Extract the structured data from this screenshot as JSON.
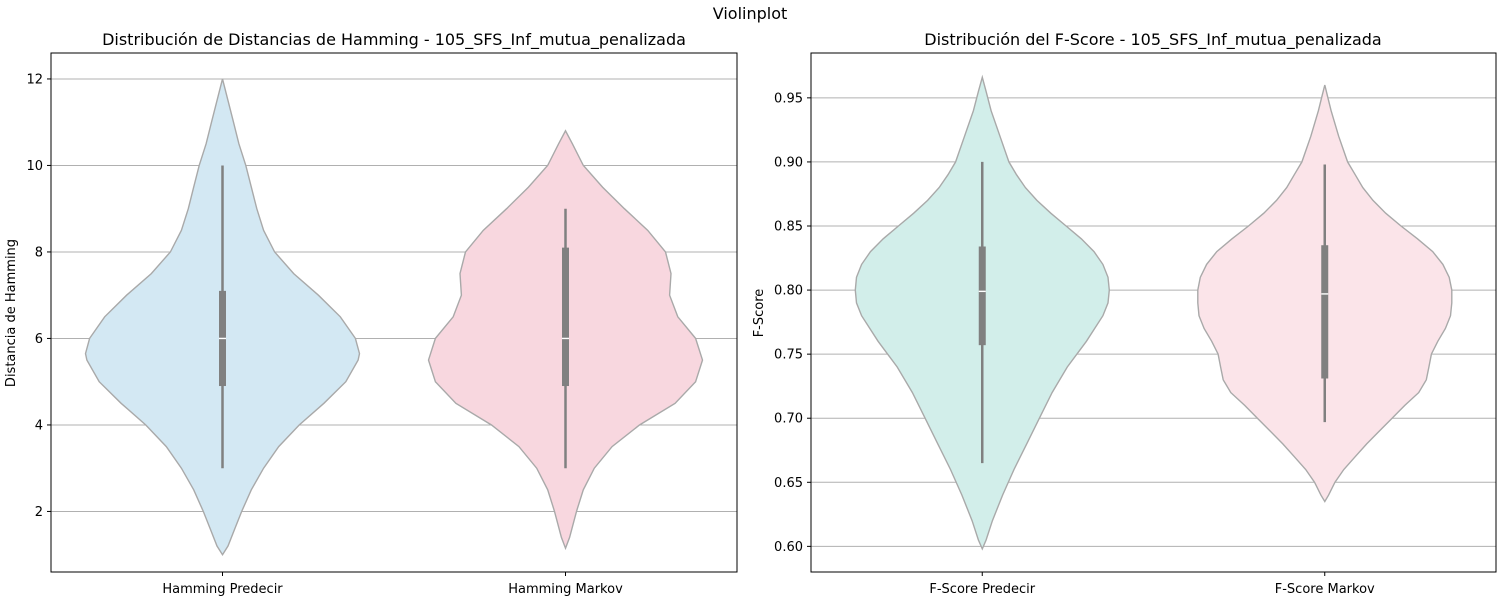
{
  "suptitle": "Violinplot",
  "chart_data": [
    {
      "type": "violin",
      "title": "Distribución de Distancias de Hamming - 105_SFS_Inf_mutua_penalizada",
      "xlabel": "",
      "ylabel": "Distancia de Hamming",
      "ylim": [
        0.6,
        12.6
      ],
      "yticks": [
        2,
        4,
        6,
        8,
        10,
        12
      ],
      "tick_decimals": 0,
      "grid": "y",
      "categories": [
        "Hamming Predecir",
        "Hamming Markov"
      ],
      "series": [
        {
          "category": "Hamming Predecir",
          "color": "#d3e8f3",
          "stats": {
            "min": 3,
            "q1": 4.9,
            "median": 6.0,
            "q3": 7.1,
            "max": 10
          },
          "density": [
            [
              1.0,
              0.0
            ],
            [
              1.2,
              0.04
            ],
            [
              1.6,
              0.09
            ],
            [
              2.0,
              0.14
            ],
            [
              2.5,
              0.21
            ],
            [
              3.0,
              0.3
            ],
            [
              3.5,
              0.41
            ],
            [
              4.0,
              0.56
            ],
            [
              4.5,
              0.74
            ],
            [
              5.0,
              0.9
            ],
            [
              5.5,
              0.99
            ],
            [
              5.65,
              1.0
            ],
            [
              6.0,
              0.97
            ],
            [
              6.5,
              0.86
            ],
            [
              7.0,
              0.7
            ],
            [
              7.5,
              0.52
            ],
            [
              8.0,
              0.38
            ],
            [
              8.5,
              0.3
            ],
            [
              9.0,
              0.25
            ],
            [
              9.5,
              0.21
            ],
            [
              10.0,
              0.17
            ],
            [
              10.5,
              0.12
            ],
            [
              11.0,
              0.08
            ],
            [
              11.5,
              0.04
            ],
            [
              12.0,
              0.0
            ]
          ]
        },
        {
          "category": "Hamming Markov",
          "color": "#f8d7df",
          "stats": {
            "min": 3,
            "q1": 4.9,
            "median": 6.0,
            "q3": 8.1,
            "max": 9
          },
          "density": [
            [
              1.15,
              0.0
            ],
            [
              1.4,
              0.03
            ],
            [
              2.0,
              0.08
            ],
            [
              2.5,
              0.13
            ],
            [
              3.0,
              0.21
            ],
            [
              3.5,
              0.34
            ],
            [
              4.0,
              0.54
            ],
            [
              4.5,
              0.8
            ],
            [
              5.0,
              0.95
            ],
            [
              5.5,
              1.0
            ],
            [
              6.0,
              0.95
            ],
            [
              6.5,
              0.82
            ],
            [
              7.0,
              0.76
            ],
            [
              7.5,
              0.77
            ],
            [
              8.0,
              0.73
            ],
            [
              8.5,
              0.6
            ],
            [
              9.0,
              0.43
            ],
            [
              9.5,
              0.27
            ],
            [
              10.0,
              0.13
            ],
            [
              10.5,
              0.05
            ],
            [
              10.8,
              0.0
            ]
          ]
        }
      ]
    },
    {
      "type": "violin",
      "title": "Distribución del F-Score - 105_SFS_Inf_mutua_penalizada",
      "xlabel": "",
      "ylabel": "F-Score",
      "ylim": [
        0.58,
        0.985
      ],
      "yticks": [
        0.6,
        0.65,
        0.7,
        0.75,
        0.8,
        0.85,
        0.9,
        0.95
      ],
      "tick_decimals": 2,
      "grid": "y",
      "categories": [
        "F-Score Predecir",
        "F-Score Markov"
      ],
      "series": [
        {
          "category": "F-Score Predecir",
          "color": "#d2eeea",
          "stats": {
            "min": 0.665,
            "q1": 0.757,
            "median": 0.799,
            "q3": 0.834,
            "max": 0.9
          },
          "density": [
            [
              0.598,
              0.0
            ],
            [
              0.605,
              0.03
            ],
            [
              0.62,
              0.08
            ],
            [
              0.64,
              0.16
            ],
            [
              0.66,
              0.25
            ],
            [
              0.68,
              0.35
            ],
            [
              0.7,
              0.45
            ],
            [
              0.72,
              0.55
            ],
            [
              0.74,
              0.67
            ],
            [
              0.76,
              0.82
            ],
            [
              0.78,
              0.95
            ],
            [
              0.79,
              0.99
            ],
            [
              0.8,
              1.0
            ],
            [
              0.81,
              0.99
            ],
            [
              0.82,
              0.95
            ],
            [
              0.83,
              0.88
            ],
            [
              0.84,
              0.78
            ],
            [
              0.85,
              0.66
            ],
            [
              0.86,
              0.54
            ],
            [
              0.87,
              0.43
            ],
            [
              0.88,
              0.34
            ],
            [
              0.89,
              0.27
            ],
            [
              0.9,
              0.21
            ],
            [
              0.92,
              0.14
            ],
            [
              0.94,
              0.07
            ],
            [
              0.955,
              0.03
            ],
            [
              0.966,
              0.0
            ]
          ]
        },
        {
          "category": "F-Score Markov",
          "color": "#fbe4e9",
          "stats": {
            "min": 0.697,
            "q1": 0.731,
            "median": 0.797,
            "q3": 0.835,
            "max": 0.898
          },
          "density": [
            [
              0.635,
              0.0
            ],
            [
              0.64,
              0.03
            ],
            [
              0.65,
              0.08
            ],
            [
              0.66,
              0.15
            ],
            [
              0.67,
              0.24
            ],
            [
              0.68,
              0.33
            ],
            [
              0.69,
              0.43
            ],
            [
              0.7,
              0.53
            ],
            [
              0.71,
              0.63
            ],
            [
              0.72,
              0.74
            ],
            [
              0.73,
              0.8
            ],
            [
              0.74,
              0.82
            ],
            [
              0.75,
              0.84
            ],
            [
              0.76,
              0.89
            ],
            [
              0.77,
              0.95
            ],
            [
              0.78,
              0.99
            ],
            [
              0.79,
              1.0
            ],
            [
              0.8,
              1.0
            ],
            [
              0.81,
              0.98
            ],
            [
              0.82,
              0.93
            ],
            [
              0.83,
              0.85
            ],
            [
              0.84,
              0.73
            ],
            [
              0.85,
              0.6
            ],
            [
              0.86,
              0.48
            ],
            [
              0.87,
              0.38
            ],
            [
              0.88,
              0.3
            ],
            [
              0.89,
              0.24
            ],
            [
              0.9,
              0.18
            ],
            [
              0.92,
              0.11
            ],
            [
              0.94,
              0.05
            ],
            [
              0.952,
              0.02
            ],
            [
              0.96,
              0.0
            ]
          ]
        }
      ]
    }
  ]
}
